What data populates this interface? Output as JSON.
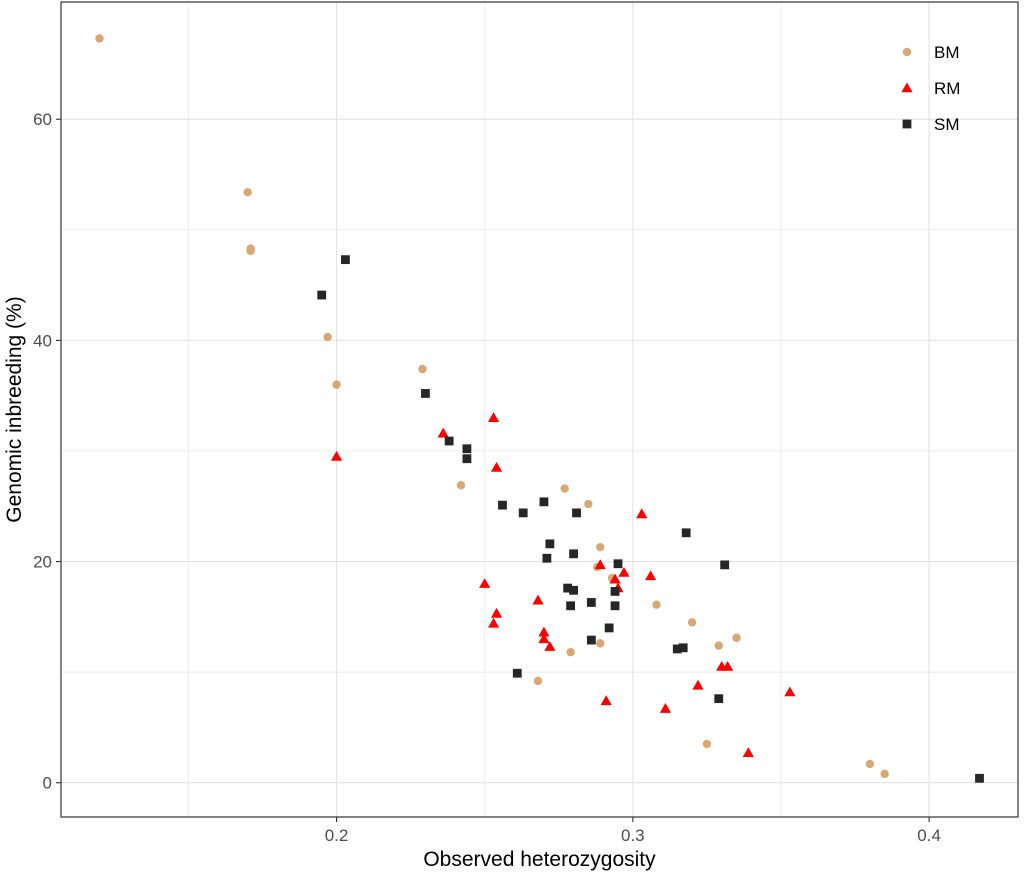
{
  "chart_data": {
    "type": "scatter",
    "title": "",
    "xlabel": "Observed heterozygosity",
    "ylabel": "Genomic inbreeding (%)",
    "xlim": [
      0.107,
      0.43
    ],
    "ylim": [
      -3.1,
      70.6
    ],
    "x_ticks": [
      0.2,
      0.3,
      0.4
    ],
    "x_tick_labels": [
      "0.2",
      "0.3",
      "0.4"
    ],
    "y_ticks": [
      0,
      20,
      40,
      60
    ],
    "y_tick_labels": [
      "0",
      "20",
      "40",
      "60"
    ],
    "x_minor_grid": [
      0.15,
      0.25,
      0.35
    ],
    "y_minor_grid": [
      10,
      30,
      50
    ],
    "grid": true,
    "legend_position": "top-right",
    "colors": {
      "BM": "#D8A874",
      "RM": "#FF0000",
      "SM": "#262626"
    },
    "series": [
      {
        "name": "BM",
        "marker": "circle",
        "points": [
          [
            0.12,
            67.3
          ],
          [
            0.17,
            53.4
          ],
          [
            0.171,
            48.3
          ],
          [
            0.171,
            48.1
          ],
          [
            0.197,
            40.3
          ],
          [
            0.2,
            36.0
          ],
          [
            0.229,
            37.4
          ],
          [
            0.242,
            26.9
          ],
          [
            0.277,
            26.6
          ],
          [
            0.285,
            25.2
          ],
          [
            0.289,
            21.3
          ],
          [
            0.288,
            19.5
          ],
          [
            0.293,
            18.5
          ],
          [
            0.308,
            16.1
          ],
          [
            0.32,
            14.5
          ],
          [
            0.335,
            13.1
          ],
          [
            0.329,
            12.4
          ],
          [
            0.289,
            12.6
          ],
          [
            0.279,
            11.8
          ],
          [
            0.268,
            9.2
          ],
          [
            0.325,
            3.5
          ],
          [
            0.38,
            1.7
          ],
          [
            0.385,
            0.8
          ]
        ]
      },
      {
        "name": "RM",
        "marker": "triangle",
        "points": [
          [
            0.2,
            29.5
          ],
          [
            0.236,
            31.6
          ],
          [
            0.253,
            33.0
          ],
          [
            0.254,
            28.5
          ],
          [
            0.303,
            24.3
          ],
          [
            0.25,
            18.0
          ],
          [
            0.289,
            19.7
          ],
          [
            0.297,
            19.0
          ],
          [
            0.306,
            18.7
          ],
          [
            0.294,
            18.4
          ],
          [
            0.295,
            17.6
          ],
          [
            0.268,
            16.5
          ],
          [
            0.254,
            15.3
          ],
          [
            0.253,
            14.4
          ],
          [
            0.27,
            13.6
          ],
          [
            0.27,
            13.0
          ],
          [
            0.272,
            12.3
          ],
          [
            0.33,
            10.5
          ],
          [
            0.332,
            10.5
          ],
          [
            0.322,
            8.8
          ],
          [
            0.353,
            8.2
          ],
          [
            0.291,
            7.4
          ],
          [
            0.311,
            6.7
          ],
          [
            0.339,
            2.7
          ]
        ]
      },
      {
        "name": "SM",
        "marker": "square",
        "points": [
          [
            0.203,
            47.3
          ],
          [
            0.195,
            44.1
          ],
          [
            0.23,
            35.2
          ],
          [
            0.238,
            30.9
          ],
          [
            0.244,
            30.2
          ],
          [
            0.244,
            29.3
          ],
          [
            0.256,
            25.1
          ],
          [
            0.263,
            24.4
          ],
          [
            0.27,
            25.4
          ],
          [
            0.281,
            24.4
          ],
          [
            0.318,
            22.6
          ],
          [
            0.272,
            21.6
          ],
          [
            0.28,
            20.7
          ],
          [
            0.271,
            20.3
          ],
          [
            0.295,
            19.8
          ],
          [
            0.331,
            19.7
          ],
          [
            0.278,
            17.6
          ],
          [
            0.28,
            17.4
          ],
          [
            0.294,
            17.3
          ],
          [
            0.286,
            16.3
          ],
          [
            0.279,
            16.0
          ],
          [
            0.294,
            16.0
          ],
          [
            0.292,
            14.0
          ],
          [
            0.286,
            12.9
          ],
          [
            0.317,
            12.2
          ],
          [
            0.315,
            12.1
          ],
          [
            0.261,
            9.9
          ],
          [
            0.329,
            7.6
          ],
          [
            0.417,
            0.4
          ]
        ]
      }
    ]
  }
}
